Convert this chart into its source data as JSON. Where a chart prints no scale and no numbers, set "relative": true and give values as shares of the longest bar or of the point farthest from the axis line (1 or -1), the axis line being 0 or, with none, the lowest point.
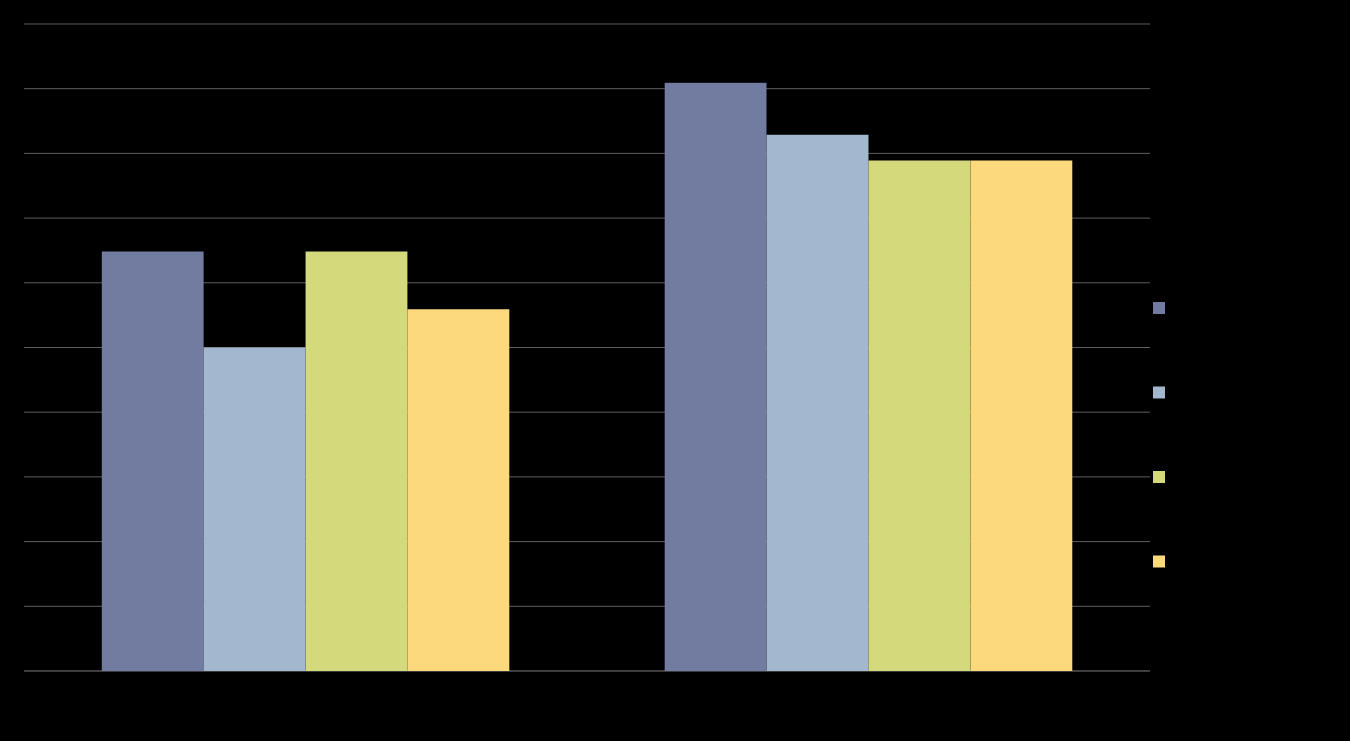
{
  "chart_data": {
    "type": "bar",
    "relative": true,
    "categories": [
      null,
      null
    ],
    "grid": "y",
    "series": [
      {
        "color": "#727ca0",
        "values": [
          0.713,
          1
        ]
      },
      {
        "color": "#a3b8cf",
        "values": [
          0.55,
          0.912
        ]
      },
      {
        "color": "#d4da7c",
        "values": [
          0.713,
          0.868
        ]
      },
      {
        "color": "#fbd97c",
        "values": [
          0.615,
          0.868
        ]
      }
    ]
  }
}
